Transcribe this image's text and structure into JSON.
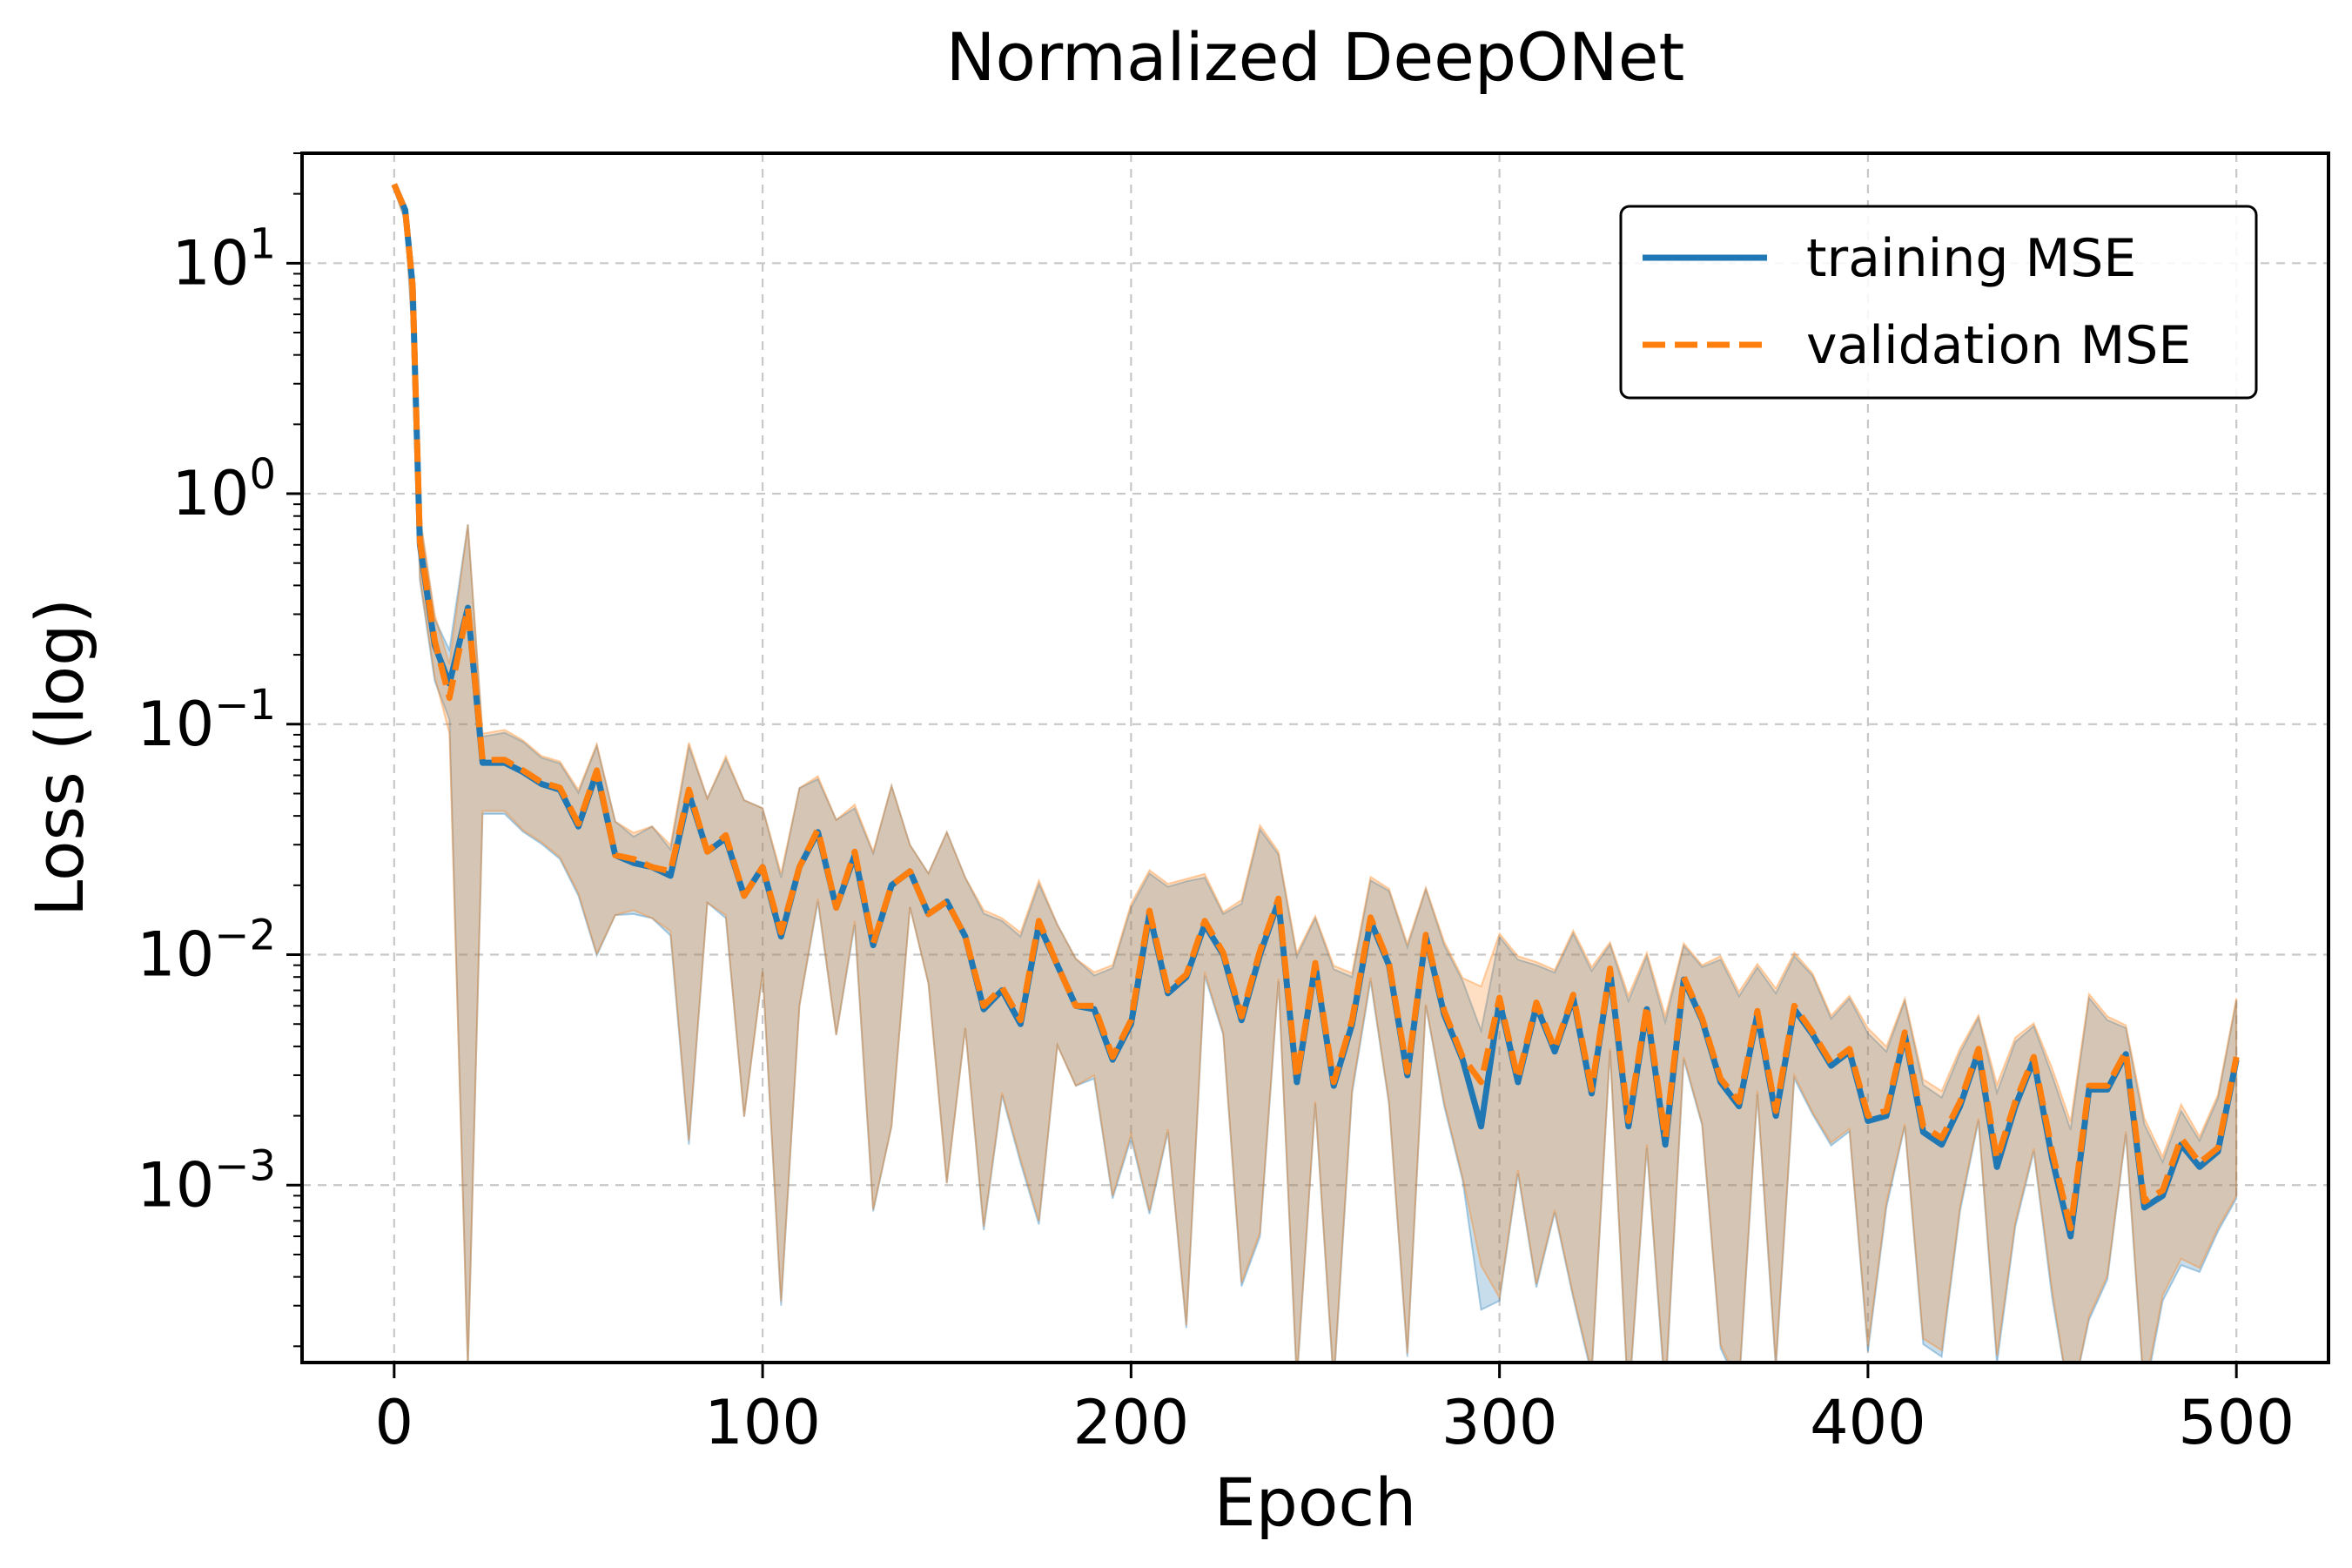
{
  "chart_data": {
    "type": "line",
    "title": "Normalized DeepONet",
    "xlabel": "Epoch",
    "ylabel": "Loss (log)",
    "yscale": "log",
    "xlim": [
      -25,
      525
    ],
    "ylim": [
      0.00017,
      30
    ],
    "xticks": [
      0,
      100,
      200,
      300,
      400,
      500
    ],
    "xtick_labels": [
      "0",
      "100",
      "200",
      "300",
      "400",
      "500"
    ],
    "yticks": [
      {
        "value": 10,
        "base": "10",
        "exp": "1"
      },
      {
        "value": 1,
        "base": "10",
        "exp": "0"
      },
      {
        "value": 0.1,
        "base": "10",
        "exp": "−1"
      },
      {
        "value": 0.01,
        "base": "10",
        "exp": "−2"
      },
      {
        "value": 0.001,
        "base": "10",
        "exp": "−3"
      }
    ],
    "grid": true,
    "legend_position": "top-right",
    "x": [
      0,
      3,
      5,
      7,
      11,
      15,
      20,
      24,
      30,
      35,
      40,
      45,
      50,
      55,
      60,
      65,
      70,
      75,
      80,
      85,
      90,
      95,
      100,
      105,
      110,
      115,
      120,
      125,
      130,
      135,
      140,
      145,
      150,
      155,
      160,
      165,
      170,
      175,
      180,
      185,
      190,
      195,
      200,
      205,
      210,
      215,
      220,
      225,
      230,
      235,
      240,
      245,
      250,
      255,
      260,
      265,
      270,
      275,
      280,
      285,
      290,
      295,
      300,
      305,
      310,
      315,
      320,
      325,
      330,
      335,
      340,
      345,
      350,
      355,
      360,
      365,
      370,
      375,
      380,
      385,
      390,
      395,
      400,
      405,
      410,
      415,
      420,
      425,
      430,
      435,
      440,
      445,
      450,
      455,
      460,
      465,
      470,
      475,
      480,
      485,
      490,
      495,
      500
    ],
    "series": [
      {
        "name": "training MSE",
        "color": "#1f77b4",
        "style": "solid",
        "values": [
          22,
          17,
          8,
          0.6,
          0.22,
          0.15,
          0.32,
          0.068,
          0.068,
          0.062,
          0.055,
          0.052,
          0.036,
          0.062,
          0.027,
          0.025,
          0.024,
          0.022,
          0.05,
          0.028,
          0.032,
          0.018,
          0.024,
          0.012,
          0.024,
          0.034,
          0.016,
          0.027,
          0.011,
          0.02,
          0.023,
          0.015,
          0.017,
          0.012,
          0.0058,
          0.007,
          0.005,
          0.0135,
          0.009,
          0.006,
          0.0058,
          0.0035,
          0.005,
          0.015,
          0.0068,
          0.008,
          0.0135,
          0.01,
          0.0052,
          0.01,
          0.017,
          0.0028,
          0.009,
          0.0027,
          0.005,
          0.014,
          0.009,
          0.003,
          0.012,
          0.0055,
          0.0035,
          0.0018,
          0.0063,
          0.0028,
          0.006,
          0.0038,
          0.0065,
          0.0025,
          0.0085,
          0.0018,
          0.0058,
          0.0015,
          0.0078,
          0.0052,
          0.0028,
          0.0022,
          0.0055,
          0.002,
          0.0058,
          0.0045,
          0.0033,
          0.0038,
          0.0019,
          0.002,
          0.0045,
          0.0017,
          0.0015,
          0.0022,
          0.0038,
          0.0012,
          0.0022,
          0.0035,
          0.0013,
          0.0006,
          0.0026,
          0.0026,
          0.0037,
          0.0008,
          0.0009,
          0.0015,
          0.0012,
          0.0014,
          0.0035
        ]
      },
      {
        "name": "validation MSE",
        "color": "#ff7f0e",
        "style": "dashed",
        "values": [
          22,
          17,
          8,
          0.62,
          0.23,
          0.13,
          0.32,
          0.07,
          0.07,
          0.063,
          0.056,
          0.053,
          0.037,
          0.063,
          0.027,
          0.026,
          0.024,
          0.023,
          0.052,
          0.028,
          0.033,
          0.018,
          0.024,
          0.0125,
          0.024,
          0.035,
          0.016,
          0.028,
          0.0112,
          0.02,
          0.023,
          0.015,
          0.017,
          0.012,
          0.006,
          0.0072,
          0.0052,
          0.014,
          0.009,
          0.006,
          0.006,
          0.0036,
          0.0052,
          0.0155,
          0.007,
          0.0082,
          0.014,
          0.0102,
          0.0054,
          0.0104,
          0.0175,
          0.0029,
          0.0092,
          0.0028,
          0.0052,
          0.0145,
          0.0092,
          0.0031,
          0.0122,
          0.0057,
          0.0036,
          0.0028,
          0.0065,
          0.0029,
          0.0062,
          0.0039,
          0.0067,
          0.0026,
          0.0087,
          0.0019,
          0.006,
          0.0016,
          0.008,
          0.0053,
          0.0029,
          0.0023,
          0.0057,
          0.0021,
          0.006,
          0.0046,
          0.0034,
          0.0039,
          0.002,
          0.0021,
          0.0046,
          0.0018,
          0.0016,
          0.0023,
          0.0039,
          0.0013,
          0.0023,
          0.0036,
          0.0014,
          0.00065,
          0.0027,
          0.0027,
          0.0038,
          0.00085,
          0.00095,
          0.0016,
          0.00125,
          0.00145,
          0.0036
        ]
      }
    ],
    "band_hi_factor": [
      1,
      1,
      1,
      1.3,
      1.3,
      1.4,
      2.3,
      1.3,
      1.35,
      1.35,
      1.3,
      1.3,
      1.4,
      1.3,
      1.4,
      1.3,
      1.5,
      1.3,
      1.6,
      1.7,
      2.2,
      2.6,
      1.8,
      1.8,
      2.2,
      1.7,
      2.4,
      1.6,
      2.5,
      2.7,
      1.3,
      1.5,
      2,
      1.8,
      2.6,
      2,
      2.4,
      1.5,
      1.5,
      1.6,
      1.4,
      2.5,
      3.2,
      1.5,
      2.9,
      2.6,
      1.6,
      1.5,
      3.2,
      3.5,
      1.6,
      3.5,
      1.6,
      3.2,
      1.6,
      1.5,
      2.1,
      3.6,
      1.6,
      2,
      2.2,
      2.6,
      1.9,
      3.4,
      1.5,
      2.2,
      1.9,
      3.4,
      1.3,
      3.5,
      1.7,
      3.4,
      1.4,
      1.7,
      3.4,
      3,
      1.6,
      3.4,
      1.7,
      1.8,
      1.6,
      1.7,
      2.4,
      1.9,
      1.4,
      1.6,
      1.6,
      1.7,
      1.4,
      2.1,
      1.9,
      1.4,
      2.3,
      2.9,
      2.5,
      2,
      1.3,
      2.3,
      1.4,
      1.4,
      1.3,
      1.7,
      1.8
    ],
    "band_lo_factor": [
      0.95,
      0.9,
      0.6,
      0.7,
      0.7,
      0.7,
      0.0005,
      0.6,
      0.6,
      0.55,
      0.55,
      0.5,
      0.5,
      0.16,
      0.55,
      0.6,
      0.6,
      0.55,
      0.03,
      0.6,
      0.45,
      0.11,
      0.35,
      0.025,
      0.25,
      0.5,
      0.28,
      0.5,
      0.07,
      0.09,
      0.7,
      0.5,
      0.06,
      0.4,
      0.11,
      0.35,
      0.25,
      0.05,
      0.45,
      0.45,
      0.5,
      0.25,
      0.32,
      0.05,
      0.25,
      0.03,
      0.6,
      0.45,
      0.07,
      0.06,
      0.45,
      0.05,
      0.25,
      0.05,
      0.5,
      0.55,
      0.25,
      0.06,
      0.5,
      0.4,
      0.3,
      0.16,
      0.05,
      0.4,
      0.06,
      0.2,
      0.05,
      0.06,
      0.45,
      0.06,
      0.25,
      0.08,
      0.45,
      0.35,
      0.07,
      0.06,
      0.45,
      0.08,
      0.5,
      0.45,
      0.45,
      0.45,
      0.1,
      0.4,
      0.4,
      0.12,
      0.12,
      0.35,
      0.5,
      0.14,
      0.3,
      0.4,
      0.25,
      0.15,
      0.1,
      0.15,
      0.45,
      0.15,
      0.35,
      0.3,
      0.35,
      0.45,
      0.25
    ]
  },
  "legend": {
    "items": [
      {
        "label": "training MSE"
      },
      {
        "label": "validation MSE"
      }
    ]
  }
}
